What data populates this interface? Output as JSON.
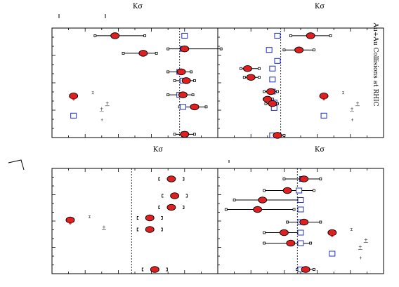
{
  "figure": {
    "collision_label": "Au+Au Collisions at RHIC",
    "panel_titles": [
      "Kσ",
      "Kσ",
      "Kσ",
      "Kσ"
    ],
    "marker_colors": {
      "circle_fill": "#e02020",
      "square_stroke": "#2030c0",
      "axis": "#000000"
    }
  },
  "chart_data": [
    {
      "type": "scatter",
      "panel": "top-left",
      "title": "Kσ",
      "xlim": [
        0,
        1
      ],
      "ylim": [
        0,
        1
      ],
      "reference_line": 0.77,
      "points_circle": [
        {
          "x": 0.38,
          "y": 0.07,
          "err": [
            0.26,
            0.56
          ]
        },
        {
          "x": 0.55,
          "y": 0.23,
          "err": [
            0.43,
            0.63
          ]
        },
        {
          "x": 0.8,
          "y": 0.19,
          "err": [
            0.7,
            1.02
          ]
        },
        {
          "x": 0.78,
          "y": 0.4,
          "err": [
            0.7,
            0.84
          ]
        },
        {
          "x": 0.81,
          "y": 0.48,
          "err": [
            0.74,
            0.86
          ]
        },
        {
          "x": 0.79,
          "y": 0.61,
          "err": [
            0.7,
            0.85
          ]
        },
        {
          "x": 0.86,
          "y": 0.72,
          "err": [
            0.77,
            0.93
          ]
        },
        {
          "x": 0.8,
          "y": 0.97,
          "err": [
            0.74,
            0.86
          ]
        }
      ],
      "points_square": [
        {
          "x": 0.8,
          "y": 0.07
        },
        {
          "x": 0.79,
          "y": 0.19
        },
        {
          "x": 0.77,
          "y": 0.4
        },
        {
          "x": 0.79,
          "y": 0.48
        },
        {
          "x": 0.77,
          "y": 0.61
        },
        {
          "x": 0.79,
          "y": 0.72
        },
        {
          "x": 0.8,
          "y": 0.97
        }
      ],
      "legend_points": [
        {
          "x": 0.13,
          "y": 0.62,
          "marker": "circle"
        },
        {
          "x": 0.13,
          "y": 0.8,
          "marker": "square"
        }
      ]
    },
    {
      "type": "scatter",
      "panel": "top-right",
      "title": "Kσ",
      "xlim": [
        0,
        1
      ],
      "ylim": [
        0,
        1
      ],
      "reference_line": 0.38,
      "points_circle": [
        {
          "x": 0.56,
          "y": 0.07,
          "err": [
            0.44,
            0.68
          ]
        },
        {
          "x": 0.49,
          "y": 0.2,
          "err": [
            0.4,
            0.58
          ]
        },
        {
          "x": 0.18,
          "y": 0.37,
          "err": [
            0.14,
            0.25
          ]
        },
        {
          "x": 0.2,
          "y": 0.45,
          "err": [
            0.16,
            0.25
          ]
        },
        {
          "x": 0.32,
          "y": 0.58,
          "err": [
            0.28,
            0.36
          ]
        },
        {
          "x": 0.3,
          "y": 0.65,
          "err": [
            0.28,
            0.33
          ]
        },
        {
          "x": 0.33,
          "y": 0.69,
          "err": [
            0.29,
            0.36
          ]
        },
        {
          "x": 0.36,
          "y": 0.98,
          "err": [
            0.33,
            0.4
          ]
        }
      ],
      "points_square": [
        {
          "x": 0.36,
          "y": 0.07
        },
        {
          "x": 0.31,
          "y": 0.2
        },
        {
          "x": 0.36,
          "y": 0.3
        },
        {
          "x": 0.33,
          "y": 0.37
        },
        {
          "x": 0.33,
          "y": 0.47
        },
        {
          "x": 0.33,
          "y": 0.58
        },
        {
          "x": 0.34,
          "y": 0.68
        },
        {
          "x": 0.34,
          "y": 0.73
        },
        {
          "x": 0.33,
          "y": 0.98
        }
      ],
      "extra_points": [
        {
          "x": 0.64,
          "y": 0.62,
          "marker": "circle"
        },
        {
          "x": 0.64,
          "y": 0.8,
          "marker": "square"
        }
      ]
    },
    {
      "type": "scatter",
      "panel": "bottom-left",
      "title": "Kσ",
      "xlim": [
        0,
        1
      ],
      "ylim": [
        0,
        1
      ],
      "reference_line": 0.48,
      "points_circle": [
        {
          "x": 0.72,
          "y": 0.1
        },
        {
          "x": 0.74,
          "y": 0.26
        },
        {
          "x": 0.72,
          "y": 0.37
        },
        {
          "x": 0.59,
          "y": 0.47
        },
        {
          "x": 0.59,
          "y": 0.58
        },
        {
          "x": 0.62,
          "y": 0.96
        }
      ],
      "brackets": [
        0.1,
        0.26,
        0.37,
        0.47,
        0.58,
        0.96
      ],
      "legend_points": [
        {
          "x": 0.11,
          "y": 0.49,
          "marker": "circle"
        }
      ]
    },
    {
      "type": "scatter",
      "panel": "bottom-right",
      "title": "Kσ",
      "xlim": [
        0,
        1
      ],
      "ylim": [
        0,
        1
      ],
      "reference_line": 0.48,
      "points_circle": [
        {
          "x": 0.52,
          "y": 0.1,
          "err": [
            0.4,
            0.62
          ]
        },
        {
          "x": 0.42,
          "y": 0.21,
          "err": [
            0.28,
            0.58
          ]
        },
        {
          "x": 0.27,
          "y": 0.3,
          "err": [
            0.1,
            0.5
          ]
        },
        {
          "x": 0.24,
          "y": 0.39,
          "err": [
            0.05,
            0.46
          ]
        },
        {
          "x": 0.52,
          "y": 0.51,
          "err": [
            0.42,
            0.62
          ]
        },
        {
          "x": 0.4,
          "y": 0.61,
          "err": [
            0.28,
            0.5
          ]
        },
        {
          "x": 0.44,
          "y": 0.71,
          "err": [
            0.28,
            0.56
          ]
        },
        {
          "x": 0.53,
          "y": 0.96,
          "err": [
            0.48,
            0.58
          ]
        }
      ],
      "points_square": [
        {
          "x": 0.51,
          "y": 0.1
        },
        {
          "x": 0.49,
          "y": 0.21
        },
        {
          "x": 0.5,
          "y": 0.3
        },
        {
          "x": 0.5,
          "y": 0.39
        },
        {
          "x": 0.5,
          "y": 0.51
        },
        {
          "x": 0.5,
          "y": 0.61
        },
        {
          "x": 0.5,
          "y": 0.71
        },
        {
          "x": 0.5,
          "y": 0.96
        }
      ],
      "extra_points": [
        {
          "x": 0.69,
          "y": 0.61,
          "marker": "circle"
        },
        {
          "x": 0.69,
          "y": 0.81,
          "marker": "square"
        }
      ]
    }
  ]
}
